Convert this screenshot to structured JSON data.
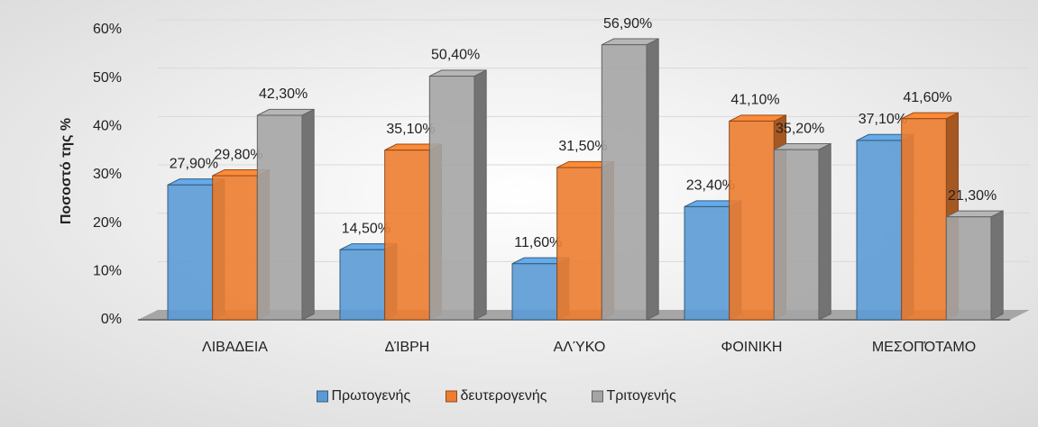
{
  "chart_data": {
    "type": "bar3d",
    "ylabel": "Ποσοστό της %",
    "categories": [
      "ΛΙΒΑΔΕΙΑ",
      "ΔΊΒΡΗ",
      "ΑΛΎΚΟ",
      "ΦΟΙΝΙΚΗ",
      "ΜΕΣΟΠΌΤΑΜΟ"
    ],
    "series": [
      {
        "name": "Πρωτογενής",
        "color": "#5b9bd5",
        "values": [
          27.9,
          14.5,
          11.6,
          23.4,
          37.1
        ],
        "value_labels": [
          "27,90%",
          "14,50%",
          "11,60%",
          "23,40%",
          "37,10%"
        ]
      },
      {
        "name": "δευτερογενής",
        "color": "#ed7d31",
        "values": [
          29.8,
          35.1,
          31.5,
          41.1,
          41.6
        ],
        "value_labels": [
          "29,80%",
          "35,10%",
          "31,50%",
          "41,10%",
          "41,60%"
        ]
      },
      {
        "name": "Τριτογενής",
        "color": "#a5a5a5",
        "values": [
          42.3,
          50.4,
          56.9,
          35.2,
          21.3
        ],
        "value_labels": [
          "42,30%",
          "50,40%",
          "56,90%",
          "35,20%",
          "21,30%"
        ]
      }
    ],
    "ylim": [
      0,
      60
    ],
    "yticks": [
      {
        "value": 0,
        "label": "0%"
      },
      {
        "value": 10,
        "label": "10%"
      },
      {
        "value": 20,
        "label": "20%"
      },
      {
        "value": 30,
        "label": "30%"
      },
      {
        "value": 40,
        "label": "40%"
      },
      {
        "value": 50,
        "label": "50%"
      },
      {
        "value": 60,
        "label": "60%"
      }
    ],
    "grid": true,
    "legend": "bottom"
  }
}
